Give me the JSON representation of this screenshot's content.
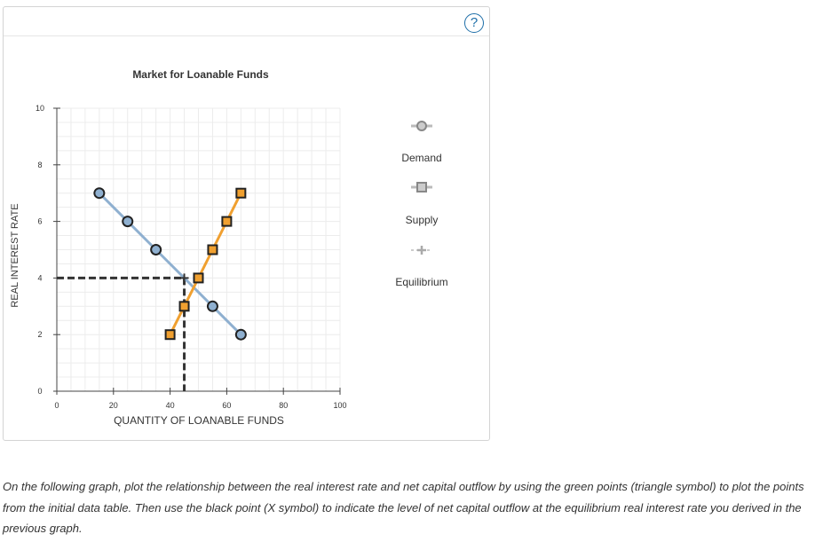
{
  "help": {
    "label": "?"
  },
  "chart_data": {
    "type": "line",
    "title": "Market for Loanable Funds",
    "xlabel": "QUANTITY OF LOANABLE FUNDS",
    "ylabel": "REAL INTEREST RATE",
    "xlim": [
      0,
      100
    ],
    "ylim": [
      0,
      10
    ],
    "x_ticks": [
      0,
      20,
      40,
      60,
      80,
      100
    ],
    "y_ticks": [
      0,
      2,
      4,
      6,
      8,
      10
    ],
    "grid": true,
    "legend_position": "right",
    "series": [
      {
        "name": "Demand",
        "color": "#8fb0d0",
        "marker": "circle",
        "x": [
          15,
          25,
          35,
          55,
          65
        ],
        "y": [
          7,
          6,
          5,
          3,
          2
        ]
      },
      {
        "name": "Supply",
        "color": "#f0a030",
        "marker": "square",
        "x": [
          40,
          45,
          50,
          55,
          60,
          65
        ],
        "y": [
          2,
          3,
          4,
          5,
          6,
          7
        ]
      },
      {
        "name": "Equilibrium",
        "color": "#333333",
        "marker": "plus",
        "x": [
          45
        ],
        "y": [
          4
        ]
      }
    ]
  },
  "legend": {
    "demand": "Demand",
    "supply": "Supply",
    "equilibrium": "Equilibrium"
  },
  "instructions": "On the following graph, plot the relationship between the real interest rate and net capital outflow by using the green points (triangle symbol) to plot the points from the initial data table. Then use the black point (X symbol) to indicate the level of net capital outflow at the equilibrium real interest rate you derived in the previous graph."
}
